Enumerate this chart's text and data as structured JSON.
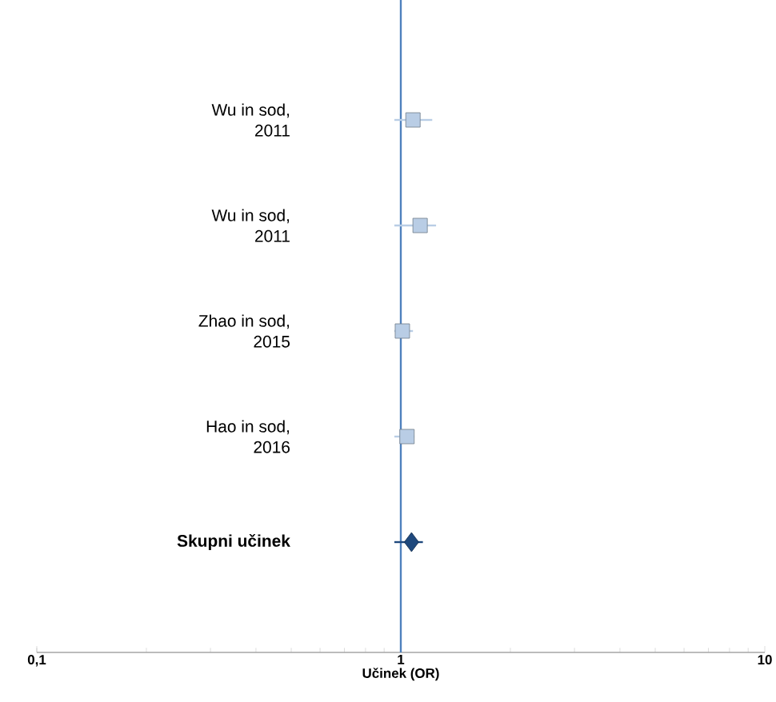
{
  "chart_data": {
    "type": "scatter",
    "orientation": "horizontal",
    "log": "x",
    "xlabel": "**Učinek (OR)**",
    "categories": [
      "Wu in sod, 2011",
      "Wu in sod, 2011",
      "Zhao in sod, 2015",
      "Hao in sod, 2016",
      "**Skupni učinek**"
    ],
    "xlim": [
      0.1,
      10
    ],
    "xticks": [
      {
        "value": 0.1,
        "label": "0,1"
      },
      1,
      10
    ],
    "series": [
      {
        "marker": "square",
        "color": "#b9cde5",
        "values": [
          1.08,
          1.13,
          1.01,
          1.04,
          null
        ],
        "errors": [
          [
            0.96,
            1.22
          ],
          [
            0.96,
            1.25
          ],
          [
            0.96,
            1.08
          ],
          [
            0.96,
            1.09
          ],
          null
        ]
      },
      {
        "marker": "diamond",
        "color": "#1f497d",
        "values": [
          null,
          null,
          null,
          null,
          1.07
        ],
        "errors": [
          null,
          null,
          null,
          null,
          [
            0.96,
            1.15
          ]
        ]
      }
    ],
    "ref_lines": [
      {
        "axis": "x",
        "value": 1,
        "color": "#4f81bd"
      }
    ],
    "grid": false
  }
}
